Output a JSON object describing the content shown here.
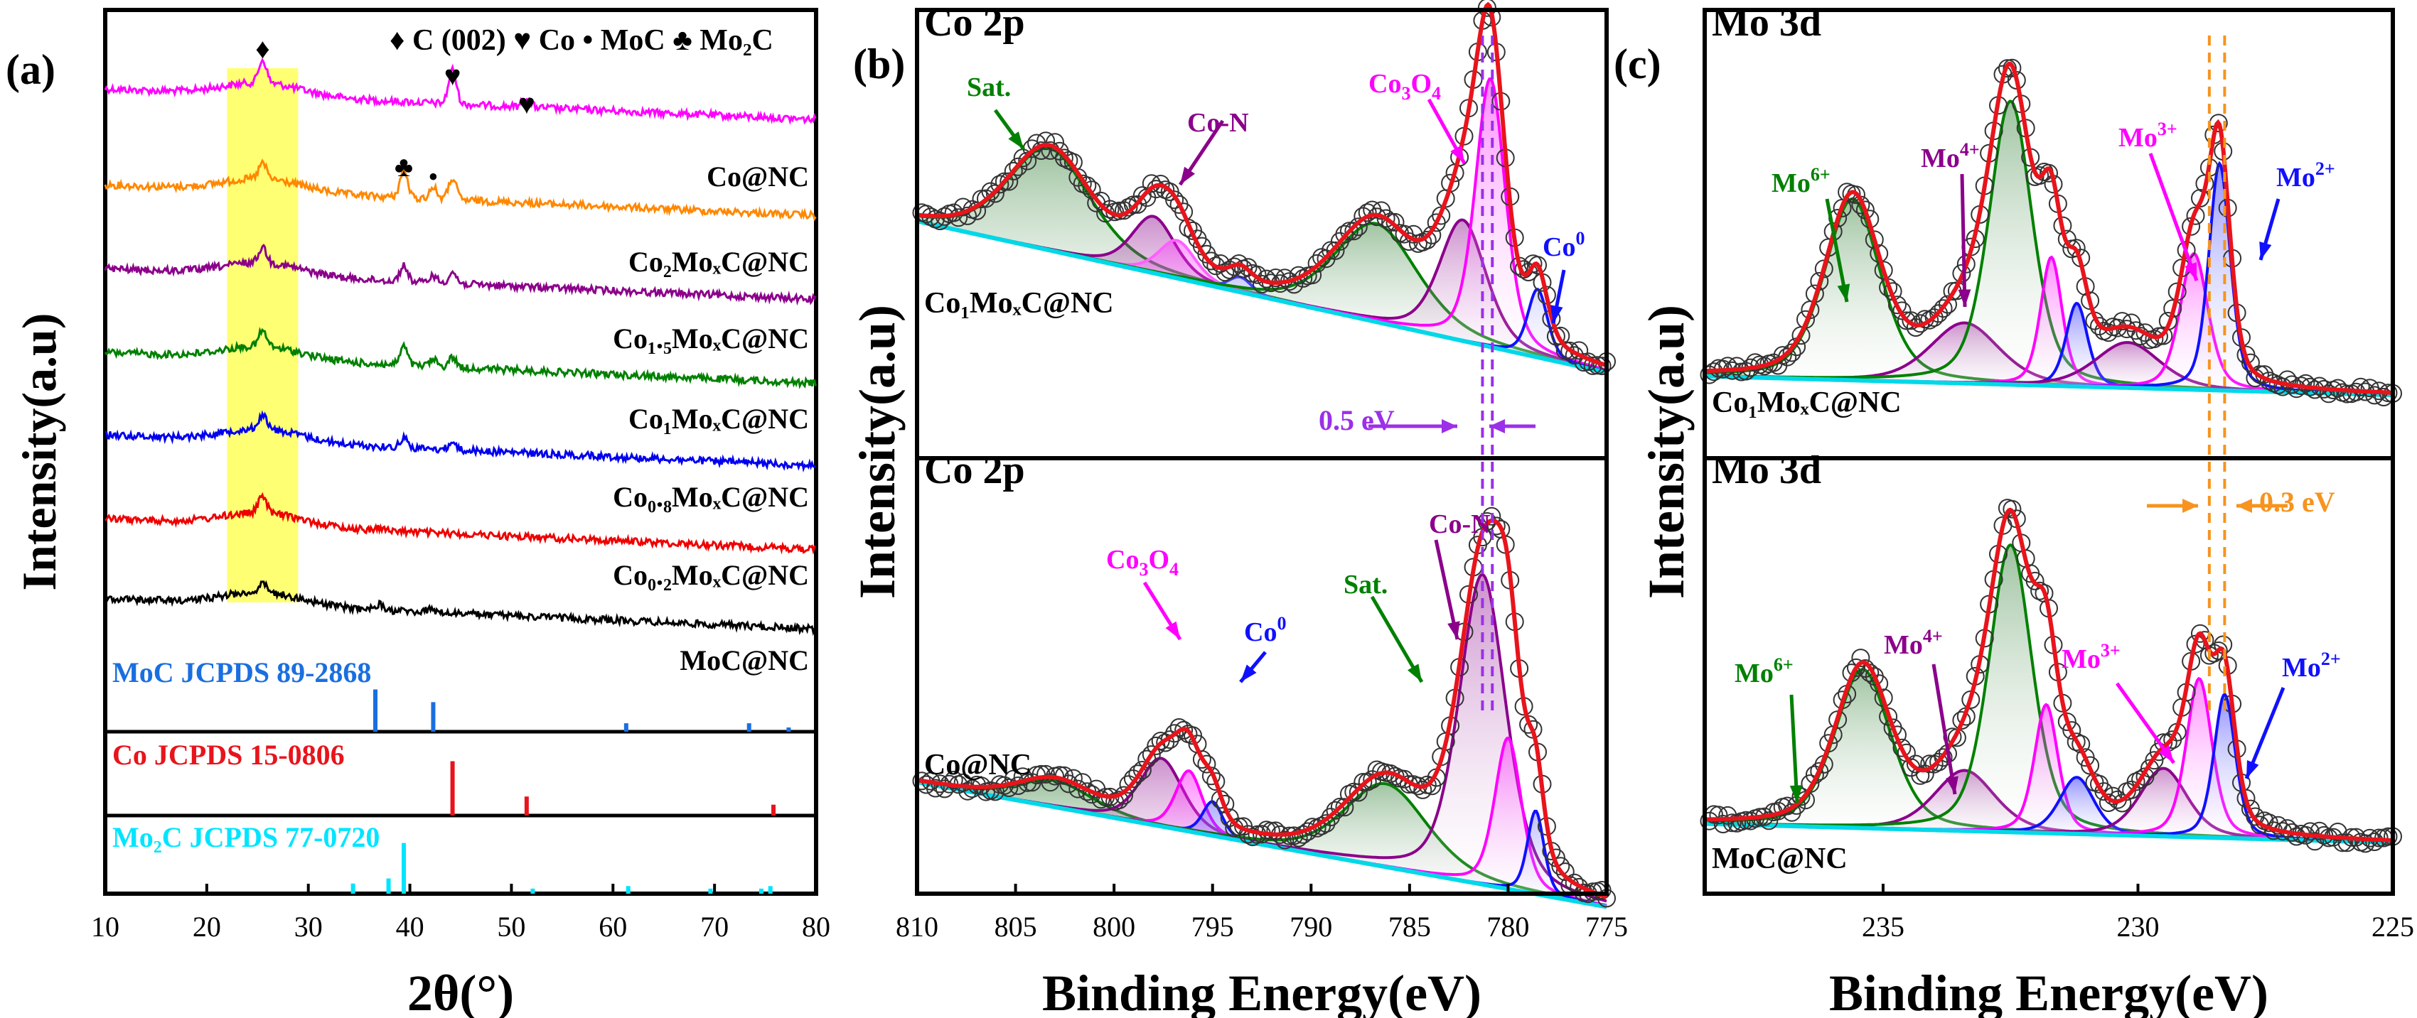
{
  "figure": {
    "colors": {
      "frame": "#000000",
      "envelope": "#e8141c",
      "baseline": "#00d8e8",
      "highlight": "#ffff44",
      "deltaArrow": "#9b30e8",
      "deltaArrowMo": "#f7931e",
      "xrdMoC": "#1a6fe0",
      "xrdCo": "#e8141c",
      "xrdMo2C": "#00e5ff"
    },
    "panels": [
      {
        "id": "a",
        "label": "(a)"
      },
      {
        "id": "b",
        "label": "(b)"
      },
      {
        "id": "c",
        "label": "(c)"
      }
    ]
  },
  "chart_data": [
    {
      "type": "line",
      "panel": "(a)",
      "title": "",
      "xlabel": "2θ(°)",
      "ylabel": "Intensity(a.u)",
      "xlim": [
        10,
        80
      ],
      "xticks": [
        "10",
        "20",
        "30",
        "40",
        "50",
        "60",
        "70",
        "80"
      ],
      "legend": [
        {
          "symbol": "♦",
          "text": "C (002)"
        },
        {
          "symbol": "♥",
          "text": "Co"
        },
        {
          "symbol": "•",
          "text": "MoC"
        },
        {
          "symbol": "♣",
          "text": "Mo₂C"
        }
      ],
      "highlight_range": [
        22,
        29
      ],
      "series": [
        {
          "name": "Co@NC",
          "color": "#ff00ff",
          "peaks": [
            [
              25.5,
              32
            ],
            [
              44.2,
              48
            ],
            [
              51.5,
              14
            ]
          ]
        },
        {
          "name": "Co₂MoₓC@NC",
          "color": "#ff8800",
          "peaks": [
            [
              25.5,
              22
            ],
            [
              39.4,
              38
            ],
            [
              42.3,
              16
            ],
            [
              44.2,
              30
            ]
          ]
        },
        {
          "name": "Co₁.₅MoₓC@NC",
          "color": "#8b008b",
          "peaks": [
            [
              25.5,
              22
            ],
            [
              39.4,
              22
            ],
            [
              42.3,
              10
            ],
            [
              44.2,
              16
            ]
          ]
        },
        {
          "name": "Co₁MoₓC@NC",
          "color": "#008000",
          "peaks": [
            [
              25.5,
              22
            ],
            [
              39.4,
              26
            ],
            [
              42.3,
              10
            ],
            [
              44.2,
              14
            ]
          ]
        },
        {
          "name": "Co₀.₈MoₓC@NC",
          "color": "#0000ee",
          "peaks": [
            [
              25.5,
              20
            ],
            [
              39.4,
              14
            ],
            [
              44.2,
              10
            ]
          ]
        },
        {
          "name": "Co₀.₂MoₓC@NC",
          "color": "#ee0000",
          "peaks": [
            [
              25.5,
              24
            ],
            [
              37.0,
              4
            ]
          ]
        },
        {
          "name": "MoC@NC",
          "color": "#000000",
          "peaks": [
            [
              25.5,
              12
            ],
            [
              37.0,
              8
            ],
            [
              42.0,
              4
            ]
          ]
        }
      ],
      "reference_patterns": [
        {
          "name": "MoC JCPDS 89-2868",
          "color": "#1a6fe0",
          "lines": [
            [
              36.6,
              1.0
            ],
            [
              42.3,
              0.7
            ],
            [
              61.3,
              0.2
            ],
            [
              73.4,
              0.2
            ],
            [
              77.3,
              0.1
            ]
          ]
        },
        {
          "name": "Co JCPDS 15-0806",
          "color": "#e8141c",
          "lines": [
            [
              44.2,
              1.0
            ],
            [
              51.5,
              0.35
            ],
            [
              75.8,
              0.2
            ]
          ]
        },
        {
          "name": "Mo₂C JCPDS 77-0720",
          "color": "#00e5ff",
          "lines": [
            [
              34.4,
              0.2
            ],
            [
              37.9,
              0.3
            ],
            [
              39.4,
              1.0
            ],
            [
              52.1,
              0.1
            ],
            [
              61.5,
              0.15
            ],
            [
              69.6,
              0.1
            ],
            [
              74.6,
              0.1
            ],
            [
              75.5,
              0.15
            ]
          ]
        }
      ]
    },
    {
      "type": "line",
      "panel": "(b)",
      "title": "Co 2p",
      "xlabel": "Binding Energy(eV)",
      "ylabel": "Intensity(a.u)",
      "xlim": [
        810,
        775
      ],
      "xticks": [
        "810",
        "805",
        "800",
        "795",
        "790",
        "785",
        "780",
        "775"
      ],
      "annotation": "0.5 eV",
      "dashed_lines_eV": [
        781.3,
        780.8
      ],
      "subplots": [
        {
          "sample": "Co₁MoₓC@NC",
          "baseline": [
            0.46,
            0.06
          ],
          "components": [
            {
              "name": "Sat.",
              "color": "#008000",
              "center": 803.3,
              "fwhm": 5.0,
              "height": 0.27
            },
            {
              "name": "Co-N",
              "color": "#8b008b",
              "center": 798.0,
              "fwhm": 2.6,
              "height": 0.15
            },
            {
              "name": "Co-N-2",
              "color": "#ff60ff",
              "center": 796.8,
              "fwhm": 2.2,
              "height": 0.1
            },
            {
              "name": "Co⁰-2",
              "color": "#4040ff",
              "center": 793.6,
              "fwhm": 1.4,
              "height": 0.04
            },
            {
              "name": "Sat.-2",
              "color": "#008000",
              "center": 786.7,
              "fwhm": 5.0,
              "height": 0.26
            },
            {
              "name": "Co-N-main",
              "color": "#8b008b",
              "center": 782.3,
              "fwhm": 2.8,
              "height": 0.32
            },
            {
              "name": "Co₃O₄",
              "color": "#ff00ff",
              "center": 780.9,
              "fwhm": 1.8,
              "height": 0.71
            },
            {
              "name": "Co⁰",
              "color": "#1010ff",
              "center": 778.5,
              "fwhm": 1.2,
              "height": 0.18
            }
          ],
          "labels": [
            {
              "text": "Sat.",
              "color": "#008000"
            },
            {
              "text": "Co-N",
              "color": "#8b008b"
            },
            {
              "text": "Co",
              "sub": "3",
              "text2": "O",
              "sub2": "4",
              "color": "#ff00ff"
            },
            {
              "text": "Co",
              "sup": "0",
              "color": "#1010ff"
            }
          ]
        },
        {
          "sample": "Co@NC",
          "baseline": [
            0.16,
            -0.17
          ],
          "components": [
            {
              "name": "Sat.-2p1",
              "color": "#008000",
              "center": 803.0,
              "fwhm": 4.5,
              "height": 0.07
            },
            {
              "name": "Co-N-2p1",
              "color": "#8b008b",
              "center": 797.6,
              "fwhm": 2.6,
              "height": 0.18
            },
            {
              "name": "Co₃O₄-2p1",
              "color": "#ff00ff",
              "center": 796.2,
              "fwhm": 1.6,
              "height": 0.16
            },
            {
              "name": "Co⁰-2p1",
              "color": "#1010ff",
              "center": 795.0,
              "fwhm": 1.2,
              "height": 0.09
            },
            {
              "name": "Sat.",
              "color": "#008000",
              "center": 786.2,
              "fwhm": 5.0,
              "height": 0.22
            },
            {
              "name": "Co-N",
              "color": "#8b008b",
              "center": 781.3,
              "fwhm": 2.8,
              "height": 0.82
            },
            {
              "name": "Co₃O₄",
              "color": "#ff00ff",
              "center": 780.0,
              "fwhm": 1.6,
              "height": 0.4
            },
            {
              "name": "Co⁰",
              "color": "#1010ff",
              "center": 778.6,
              "fwhm": 1.0,
              "height": 0.22
            }
          ],
          "labels": [
            {
              "text": "Co",
              "sub": "3",
              "text2": "O",
              "sub2": "4",
              "color": "#ff00ff"
            },
            {
              "text": "Co",
              "sup": "0",
              "color": "#1010ff"
            },
            {
              "text": "Sat.",
              "color": "#008000"
            },
            {
              "text": "Co-N",
              "color": "#8b008b"
            }
          ]
        }
      ]
    },
    {
      "type": "line",
      "panel": "(c)",
      "title": "Mo 3d",
      "xlabel": "Binding Energy(eV)",
      "ylabel": "Intensity(a.u)",
      "xlim": [
        238.5,
        225
      ],
      "xticks": [
        "235",
        "230",
        "225"
      ],
      "annotation": "0.3 eV",
      "dashed_lines_eV": [
        228.6,
        228.3
      ],
      "subplots": [
        {
          "sample": "Co₁MoₓC@NC",
          "baseline": [
            0.05,
            0.0
          ],
          "components": [
            {
              "name": "Mo⁶⁺",
              "color": "#008000",
              "center": 235.6,
              "fwhm": 1.3,
              "height": 0.48
            },
            {
              "name": "Mo⁴⁺",
              "color": "#8b008b",
              "center": 233.4,
              "fwhm": 1.6,
              "height": 0.16
            },
            {
              "name": "Mo⁶⁺-b",
              "color": "#008000",
              "center": 232.5,
              "fwhm": 1.0,
              "height": 0.75
            },
            {
              "name": "Mo³⁺-b",
              "color": "#ff00ff",
              "center": 231.7,
              "fwhm": 0.5,
              "height": 0.34
            },
            {
              "name": "Mo²⁺-b",
              "color": "#1010ff",
              "center": 231.2,
              "fwhm": 0.5,
              "height": 0.22
            },
            {
              "name": "Mo⁴⁺-a",
              "color": "#8b008b",
              "center": 230.2,
              "fwhm": 1.5,
              "height": 0.12
            },
            {
              "name": "Mo³⁺",
              "color": "#ff00ff",
              "center": 228.9,
              "fwhm": 0.65,
              "height": 0.36
            },
            {
              "name": "Mo²⁺",
              "color": "#1010ff",
              "center": 228.4,
              "fwhm": 0.5,
              "height": 0.6
            }
          ],
          "labels": [
            {
              "text": "Mo",
              "sup": "6+",
              "color": "#008000"
            },
            {
              "text": "Mo",
              "sup": "4+",
              "color": "#8b008b"
            },
            {
              "text": "Mo",
              "sup": "3+",
              "color": "#ff00ff"
            },
            {
              "text": "Mo",
              "sup": "2+",
              "color": "#1010ff"
            }
          ]
        },
        {
          "sample": "MoC@NC",
          "baseline": [
            0.05,
            0.0
          ],
          "components": [
            {
              "name": "Mo⁶⁺",
              "color": "#008000",
              "center": 235.4,
              "fwhm": 1.3,
              "height": 0.42
            },
            {
              "name": "Mo⁴⁺",
              "color": "#8b008b",
              "center": 233.4,
              "fwhm": 1.4,
              "height": 0.16
            },
            {
              "name": "Mo⁶⁺-b",
              "color": "#008000",
              "center": 232.5,
              "fwhm": 1.0,
              "height": 0.76
            },
            {
              "name": "Mo³⁺-b",
              "color": "#ff00ff",
              "center": 231.8,
              "fwhm": 0.55,
              "height": 0.34
            },
            {
              "name": "Mo²⁺-b",
              "color": "#1010ff",
              "center": 231.2,
              "fwhm": 0.8,
              "height": 0.15
            },
            {
              "name": "Mo⁴⁺-a",
              "color": "#8b008b",
              "center": 229.5,
              "fwhm": 1.1,
              "height": 0.18
            },
            {
              "name": "Mo³⁺",
              "color": "#ff00ff",
              "center": 228.8,
              "fwhm": 0.6,
              "height": 0.42
            },
            {
              "name": "Mo²⁺",
              "color": "#1010ff",
              "center": 228.3,
              "fwhm": 0.5,
              "height": 0.38
            }
          ],
          "labels": [
            {
              "text": "Mo",
              "sup": "6+",
              "color": "#008000"
            },
            {
              "text": "Mo",
              "sup": "4+",
              "color": "#8b008b"
            },
            {
              "text": "Mo",
              "sup": "3+",
              "color": "#ff00ff"
            },
            {
              "text": "Mo",
              "sup": "2+",
              "color": "#1010ff"
            }
          ]
        }
      ]
    }
  ]
}
